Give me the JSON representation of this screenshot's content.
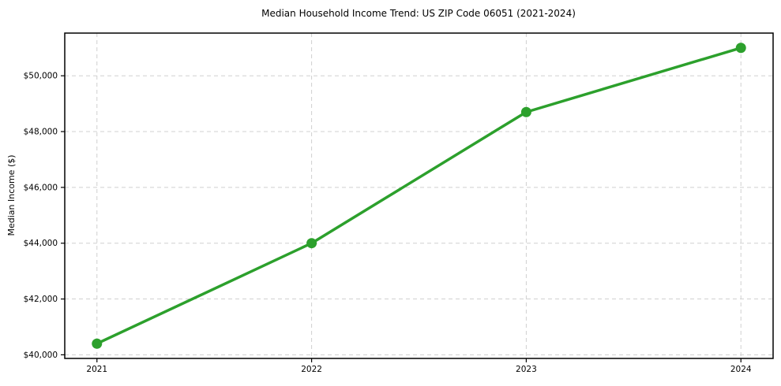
{
  "chart_data": {
    "type": "line",
    "title": "Median Household Income Trend: US ZIP Code 06051 (2021-2024)",
    "xlabel": "",
    "ylabel": "Median Income ($)",
    "x": [
      2021,
      2022,
      2023,
      2024
    ],
    "series": [
      {
        "name": "Median Household Income",
        "values": [
          40400,
          44000,
          48700,
          51000
        ]
      }
    ],
    "xtick_values": [
      2021,
      2022,
      2023,
      2024
    ],
    "xtick_labels": [
      "2021",
      "2022",
      "2023",
      "2024"
    ],
    "ytick_values": [
      40000,
      42000,
      44000,
      46000,
      48000,
      50000
    ],
    "ytick_labels": [
      "$40,000",
      "$42,000",
      "$44,000",
      "$46,000",
      "$48,000",
      "$50,000"
    ],
    "xlim": [
      2020.85,
      2024.15
    ],
    "ylim": [
      39870,
      51530
    ],
    "grid": true,
    "grid_style": "dashed",
    "legend": false,
    "line_color": "#2ca02c",
    "marker_color": "#2ca02c",
    "grid_color": "#d0d0d0",
    "spine_color": "#000000",
    "background": "#ffffff"
  }
}
